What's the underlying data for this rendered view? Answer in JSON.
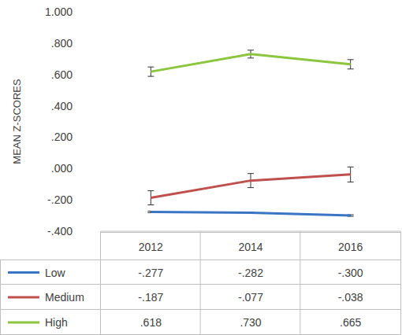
{
  "chart_data": {
    "type": "line",
    "y_label": "MEAN Z-SCORES",
    "categories": [
      "2012",
      "2014",
      "2016"
    ],
    "series": [
      {
        "name": "Low",
        "color": "#3a75c4",
        "line_style": "solid",
        "values": [
          -0.277,
          -0.282,
          -0.3
        ],
        "value_labels": [
          "-.277",
          "-.282",
          "-.300"
        ],
        "errors": [
          0.005,
          0.005,
          0.005
        ]
      },
      {
        "name": "Medium",
        "color": "#c0504d",
        "line_style": "solid",
        "values": [
          -0.187,
          -0.077,
          -0.038
        ],
        "value_labels": [
          "-.187",
          "-.077",
          "-.038"
        ],
        "errors": [
          0.045,
          0.045,
          0.048
        ]
      },
      {
        "name": "High",
        "color": "#8cc63f",
        "line_style": "solid",
        "values": [
          0.618,
          0.73,
          0.665
        ],
        "value_labels": [
          ".618",
          ".730",
          ".665"
        ],
        "errors": [
          0.03,
          0.025,
          0.03
        ]
      }
    ],
    "ylim": [
      -0.4,
      1.0
    ],
    "yticks": [
      {
        "value": -0.4,
        "label": "-.400"
      },
      {
        "value": -0.2,
        "label": "-.200"
      },
      {
        "value": 0,
        "label": ".000"
      },
      {
        "value": 0.2,
        "label": ".200"
      },
      {
        "value": 0.4,
        "label": ".400"
      },
      {
        "value": 0.6,
        "label": ".600"
      },
      {
        "value": 0.8,
        "label": ".800"
      },
      {
        "value": 1.0,
        "label": "1.000"
      }
    ],
    "grid": false,
    "legend": "bottom"
  }
}
